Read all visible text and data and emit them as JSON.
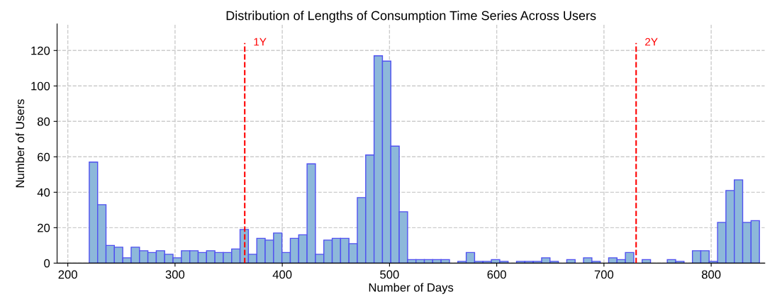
{
  "chart_data": {
    "type": "histogram",
    "title": "Distribution of Lengths of Consumption Time Series Across Users",
    "xlabel": "Number of Days",
    "ylabel": "Number of Users",
    "bins": [
      220,
      227.8125,
      235.625,
      243.4375,
      251.25,
      259.0625,
      266.875,
      274.6875,
      282.5,
      290.3125,
      298.125,
      305.9375,
      313.75,
      321.5625,
      329.375,
      337.1875,
      345,
      352.8125,
      360.625,
      368.4375,
      376.25,
      384.0625,
      391.875,
      399.6875,
      407.5,
      415.3125,
      423.125,
      430.9375,
      438.75,
      446.5625,
      454.375,
      462.1875,
      470,
      477.8125,
      485.625,
      493.4375,
      501.25,
      509.0625,
      516.875,
      524.6875,
      532.5,
      540.3125,
      548.125,
      555.9375,
      563.75,
      571.5625,
      579.375,
      587.1875,
      595,
      602.8125,
      610.625,
      618.4375,
      626.25,
      634.0625,
      641.875,
      649.6875,
      657.5,
      665.3125,
      673.125,
      680.9375,
      688.75,
      696.5625,
      704.375,
      712.1875,
      720,
      727.8125,
      735.625,
      743.4375,
      751.25,
      759.0625,
      766.875,
      774.6875,
      782.5,
      790.3125,
      798.125,
      805.9375,
      813.75,
      821.5625,
      829.375,
      837.1875,
      845
    ],
    "values": [
      57,
      33,
      10,
      9,
      3,
      9,
      7,
      6,
      7,
      5,
      3,
      7,
      7,
      6,
      7,
      6,
      6,
      8,
      19,
      5,
      14,
      13,
      17,
      6,
      14,
      16,
      56,
      5,
      13,
      14,
      14,
      11,
      37,
      61,
      117,
      114,
      66,
      29,
      2,
      2,
      2,
      2,
      2,
      0,
      1,
      6,
      1,
      1,
      2,
      1,
      0,
      1,
      1,
      1,
      3,
      1,
      0,
      2,
      0,
      3,
      1,
      0,
      3,
      2,
      6,
      0,
      2,
      0,
      0,
      2,
      1,
      0,
      7,
      7,
      1,
      23,
      41,
      47,
      23,
      24
    ],
    "color": "#8db8da",
    "xlim": [
      190,
      850
    ],
    "ylim": [
      0,
      135
    ],
    "xticks": [
      200,
      300,
      400,
      500,
      600,
      700,
      800
    ],
    "yticks": [
      0,
      20,
      40,
      60,
      80,
      100,
      120
    ],
    "grid": true,
    "ref_lines": [
      {
        "axis": "x",
        "value": 365,
        "label": "1Y",
        "color": "#ff0000",
        "line_style": "dashed"
      },
      {
        "axis": "x",
        "value": 730,
        "label": "2Y",
        "color": "#ff0000",
        "line_style": "dashed"
      }
    ]
  }
}
